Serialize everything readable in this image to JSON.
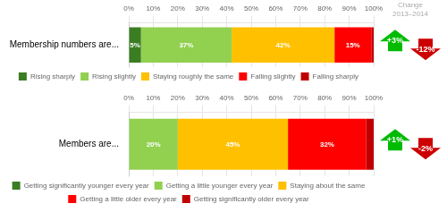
{
  "chart_data": [
    {
      "type": "bar",
      "orientation": "horizontal",
      "stacked": true,
      "categories": [
        "Membership numbers are..."
      ],
      "series": [
        {
          "name": "Rising sharply",
          "color": "#3a7d23",
          "values": [
            5
          ],
          "value_labels": [
            "5%"
          ]
        },
        {
          "name": "Rising slightly",
          "color": "#92d050",
          "values": [
            37
          ],
          "value_labels": [
            "37%"
          ]
        },
        {
          "name": "Staying roughly the same",
          "color": "#ffc000",
          "values": [
            42
          ],
          "value_labels": [
            "42%"
          ]
        },
        {
          "name": "Falling slightly",
          "color": "#ff0000",
          "values": [
            15
          ],
          "value_labels": [
            "15%"
          ]
        },
        {
          "name": "Falling sharply",
          "color": "#c00000",
          "values": [
            1
          ],
          "value_labels": [
            null
          ]
        }
      ],
      "xlim": [
        0,
        100
      ],
      "xticks": [
        {
          "value": 0,
          "label": "0%"
        },
        {
          "value": 10,
          "label": "10%"
        },
        {
          "value": 20,
          "label": "20%"
        },
        {
          "value": 30,
          "label": "30%"
        },
        {
          "value": 40,
          "label": "40%"
        },
        {
          "value": 50,
          "label": "50%"
        },
        {
          "value": 60,
          "label": "60%"
        },
        {
          "value": 70,
          "label": "70%"
        },
        {
          "value": 80,
          "label": "80%"
        },
        {
          "value": 90,
          "label": "90%"
        },
        {
          "value": 100,
          "label": "100%"
        }
      ],
      "grid": true,
      "legend": "bottom",
      "data_labels": true,
      "annotations": [
        {
          "text": "Change\n2013–2014",
          "color": "#aaaaaa"
        },
        {
          "text": "+3%",
          "color": "#00bb00",
          "marker": "arrow-up"
        },
        {
          "text": "-12%",
          "color": "#cc0000",
          "marker": "arrow-down"
        }
      ]
    },
    {
      "type": "bar",
      "orientation": "horizontal",
      "stacked": true,
      "categories": [
        "Members are..."
      ],
      "series": [
        {
          "name": "Getting significantly younger every year",
          "color": "#3a7d23",
          "values": [
            0
          ],
          "value_labels": [
            null
          ]
        },
        {
          "name": "Getting a little younger every year",
          "color": "#92d050",
          "values": [
            20
          ],
          "value_labels": [
            "20%"
          ]
        },
        {
          "name": "Staying about the same",
          "color": "#ffc000",
          "values": [
            45
          ],
          "value_labels": [
            "45%"
          ]
        },
        {
          "name": "Getting a little older every year",
          "color": "#ff0000",
          "values": [
            32
          ],
          "value_labels": [
            "32%"
          ]
        },
        {
          "name": "Getting significantly older every year",
          "color": "#c00000",
          "values": [
            3
          ],
          "value_labels": [
            null
          ]
        }
      ],
      "xlim": [
        0,
        100
      ],
      "xticks": [
        {
          "value": 0,
          "label": "0%"
        },
        {
          "value": 10,
          "label": "10%"
        },
        {
          "value": 20,
          "label": "20%"
        },
        {
          "value": 30,
          "label": "30%"
        },
        {
          "value": 40,
          "label": "40%"
        },
        {
          "value": 50,
          "label": "50%"
        },
        {
          "value": 60,
          "label": "60%"
        },
        {
          "value": 70,
          "label": "70%"
        },
        {
          "value": 80,
          "label": "80%"
        },
        {
          "value": 90,
          "label": "90%"
        },
        {
          "value": 100,
          "label": "100%"
        }
      ],
      "grid": true,
      "legend": "bottom",
      "data_labels": true,
      "annotations": [
        {
          "text": "+1%",
          "color": "#00bb00",
          "marker": "arrow-up"
        },
        {
          "text": "-2%",
          "color": "#cc0000",
          "marker": "arrow-down"
        }
      ]
    }
  ]
}
